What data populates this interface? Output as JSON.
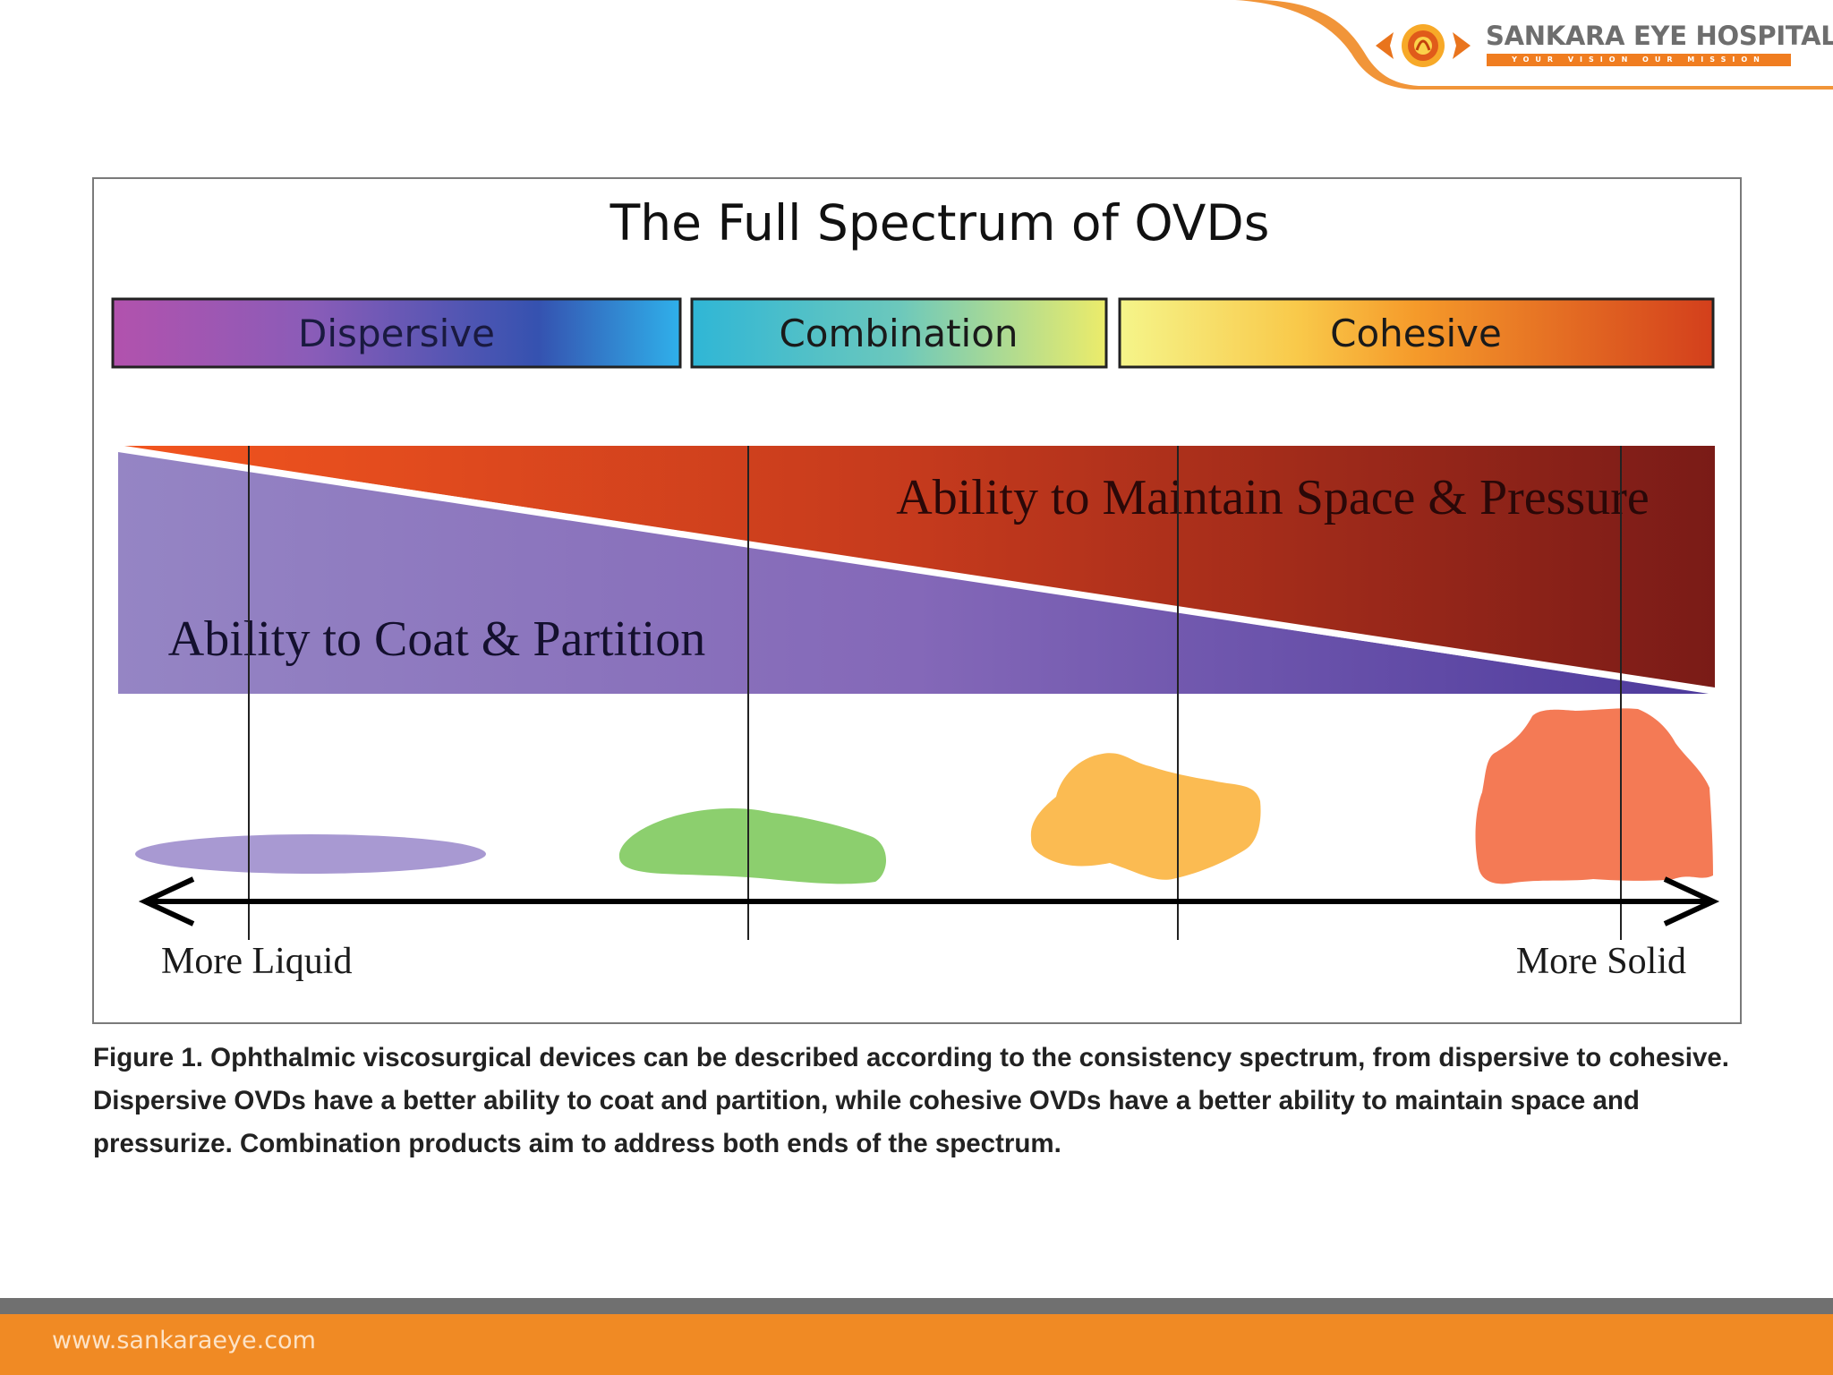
{
  "header": {
    "hospital_name": "SANKARA EYE HOSPITAL",
    "tagline": "YOUR VISION OUR MISSION",
    "brand_orange": "#f07d20"
  },
  "diagram": {
    "title": "The Full Spectrum of OVDs",
    "categories": [
      {
        "label": "Dispersive",
        "colors": [
          "#b050ac",
          "#3a56b2",
          "#2aa8e8"
        ]
      },
      {
        "label": "Combination",
        "colors": [
          "#35b8d2",
          "#e8e86a"
        ]
      },
      {
        "label": "Cohesive",
        "colors": [
          "#f2f27c",
          "#f5a127",
          "#d6451e"
        ]
      }
    ],
    "lower_region_label": "Ability to Coat & Partition",
    "upper_region_label": "Ability to Maintain Space & Pressure",
    "axis_left_label": "More Liquid",
    "axis_right_label": "More Solid",
    "blob_colors": [
      "#a899d2",
      "#8ccf6e",
      "#fbbb52",
      "#f47a55"
    ]
  },
  "caption": "Figure 1. Ophthalmic viscosurgical devices can be described according to the consistency spectrum, from dispersive to cohesive. Dispersive OVDs have a better ability to coat and partition, while cohesive OVDs have a better ability to maintain space and pressurize. Combination products aim to address both ends of the spectrum.",
  "footer": {
    "url": "www.sankaraeye.com"
  }
}
